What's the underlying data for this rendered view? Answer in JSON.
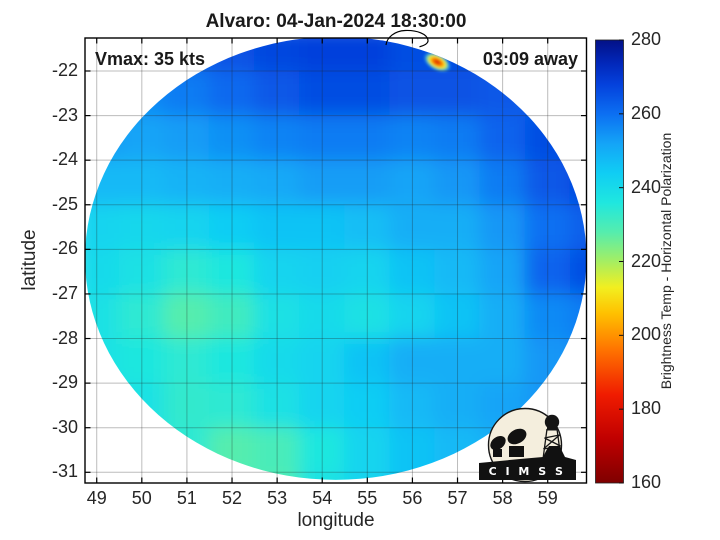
{
  "logo": {
    "name": "CIMSS",
    "text": "C I M S S"
  },
  "chart_data": {
    "type": "heatmap",
    "title": "Alvaro: 04-Jan-2024 18:30:00",
    "annotations": {
      "vmax_label": "Vmax: 35 kts",
      "eta_label": "03:09 away"
    },
    "xlabel": "longitude",
    "ylabel": "latitude",
    "xlim": [
      48.74,
      59.86
    ],
    "ylim": [
      -31.24,
      -21.26
    ],
    "xticks": [
      49,
      50,
      51,
      52,
      53,
      54,
      55,
      56,
      57,
      58,
      59
    ],
    "yticks": [
      -22,
      -23,
      -24,
      -25,
      -26,
      -27,
      -28,
      -29,
      -30,
      -31
    ],
    "grid": true,
    "colorbar": {
      "label": "Brightness Temp - Horizontal Polarization",
      "min": 160,
      "max": 280,
      "ticks": [
        160,
        180,
        200,
        220,
        240,
        260,
        280
      ],
      "position": "right",
      "stops": [
        [
          160,
          "#7f0000"
        ],
        [
          172,
          "#c00000"
        ],
        [
          184,
          "#f01c00"
        ],
        [
          196,
          "#ff7300"
        ],
        [
          206,
          "#ffc100"
        ],
        [
          213,
          "#f2ef20"
        ],
        [
          220,
          "#a5ee62"
        ],
        [
          228,
          "#55edae"
        ],
        [
          236,
          "#1fe7df"
        ],
        [
          244,
          "#10cdf4"
        ],
        [
          252,
          "#14a4f7"
        ],
        [
          260,
          "#0c6ff2"
        ],
        [
          268,
          "#0441dc"
        ],
        [
          274,
          "#0226b8"
        ],
        [
          280,
          "#031187"
        ]
      ]
    },
    "swath": {
      "shape": "ellipse",
      "center_lon": 54.3,
      "center_lat": -26.2,
      "radius_lon_deg": 5.56,
      "radius_lat_deg": 4.97
    },
    "field": {
      "units": "K",
      "lon_centers": [
        49,
        50,
        51,
        52,
        53,
        54,
        55,
        56,
        57,
        58,
        59,
        60
      ],
      "lat_centers": [
        -21.5,
        -22.5,
        -23.5,
        -24.5,
        -25.5,
        -26.5,
        -27.5,
        -28.5,
        -29.5,
        -30.5,
        -31.5
      ],
      "values": [
        [
          262,
          262,
          263,
          265,
          267,
          268,
          268,
          266,
          266,
          265,
          264,
          264
        ],
        [
          256,
          256,
          258,
          261,
          264,
          266,
          266,
          265,
          265,
          264,
          263,
          263
        ],
        [
          253,
          252,
          253,
          255,
          257,
          258,
          258,
          257,
          258,
          262,
          266,
          267
        ],
        [
          248,
          248,
          249,
          250,
          251,
          253,
          253,
          252,
          254,
          258,
          264,
          267
        ],
        [
          242,
          241,
          242,
          244,
          246,
          246,
          247,
          250,
          250,
          254,
          260,
          263
        ],
        [
          240,
          238,
          234,
          236,
          242,
          243,
          242,
          246,
          248,
          252,
          262,
          266
        ],
        [
          238,
          234,
          228,
          231,
          238,
          240,
          238,
          242,
          246,
          250,
          256,
          258
        ],
        [
          238,
          236,
          234,
          236,
          240,
          242,
          246,
          250,
          250,
          250,
          254,
          256
        ],
        [
          240,
          238,
          233,
          234,
          238,
          242,
          244,
          248,
          250,
          252,
          254,
          254
        ],
        [
          242,
          240,
          234,
          228,
          230,
          236,
          242,
          246,
          248,
          250,
          252,
          252
        ],
        [
          244,
          242,
          236,
          230,
          229,
          238,
          242,
          246,
          248,
          250,
          250,
          250
        ]
      ]
    },
    "hotspot": {
      "lon": 56.55,
      "lat": -21.8,
      "min_bt_K": 178
    }
  }
}
